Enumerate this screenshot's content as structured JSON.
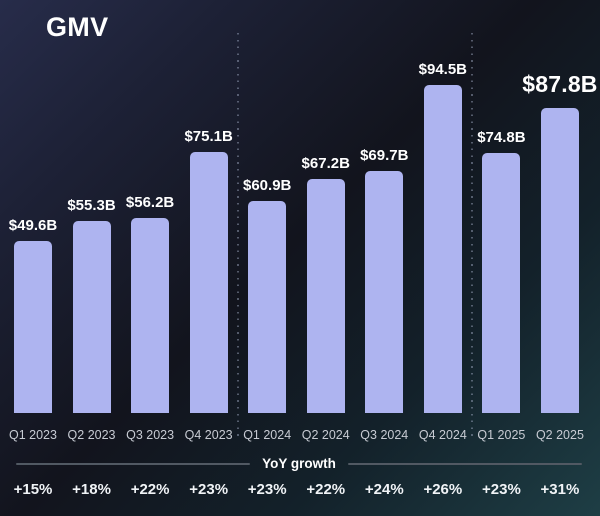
{
  "title": "GMV",
  "chart_data": {
    "type": "bar",
    "title": "GMV",
    "categories": [
      "Q1 2023",
      "Q2 2023",
      "Q3 2023",
      "Q4 2023",
      "Q1 2024",
      "Q2 2024",
      "Q3 2024",
      "Q4 2024",
      "Q1 2025",
      "Q2 2025"
    ],
    "values": [
      49.6,
      55.3,
      56.2,
      75.1,
      60.9,
      67.2,
      69.7,
      94.5,
      74.8,
      87.8
    ],
    "value_labels": [
      "$49.6B",
      "$55.3B",
      "$56.2B",
      "$75.1B",
      "$60.9B",
      "$67.2B",
      "$69.7B",
      "$94.5B",
      "$74.8B",
      "$87.8B"
    ],
    "yoy_growth": [
      "+15%",
      "+18%",
      "+22%",
      "+23%",
      "+23%",
      "+22%",
      "+24%",
      "+26%",
      "+23%",
      "+31%"
    ],
    "growth_divider_label": "YoY growth",
    "highlight_index": 9,
    "bar_color": "#aeb4f0",
    "group_separators_after_index": [
      3,
      7
    ],
    "legend": "none",
    "grid": "off",
    "ylim": [
      0,
      100
    ]
  },
  "colors": {
    "background_top_left": "#272c4a",
    "background_center": "#12141d",
    "background_bottom_right": "#1e3e45",
    "bar": "#aeb4f0",
    "text_primary": "#ffffff",
    "text_axis": "#c7cbd3",
    "divider_line": "#515963"
  }
}
